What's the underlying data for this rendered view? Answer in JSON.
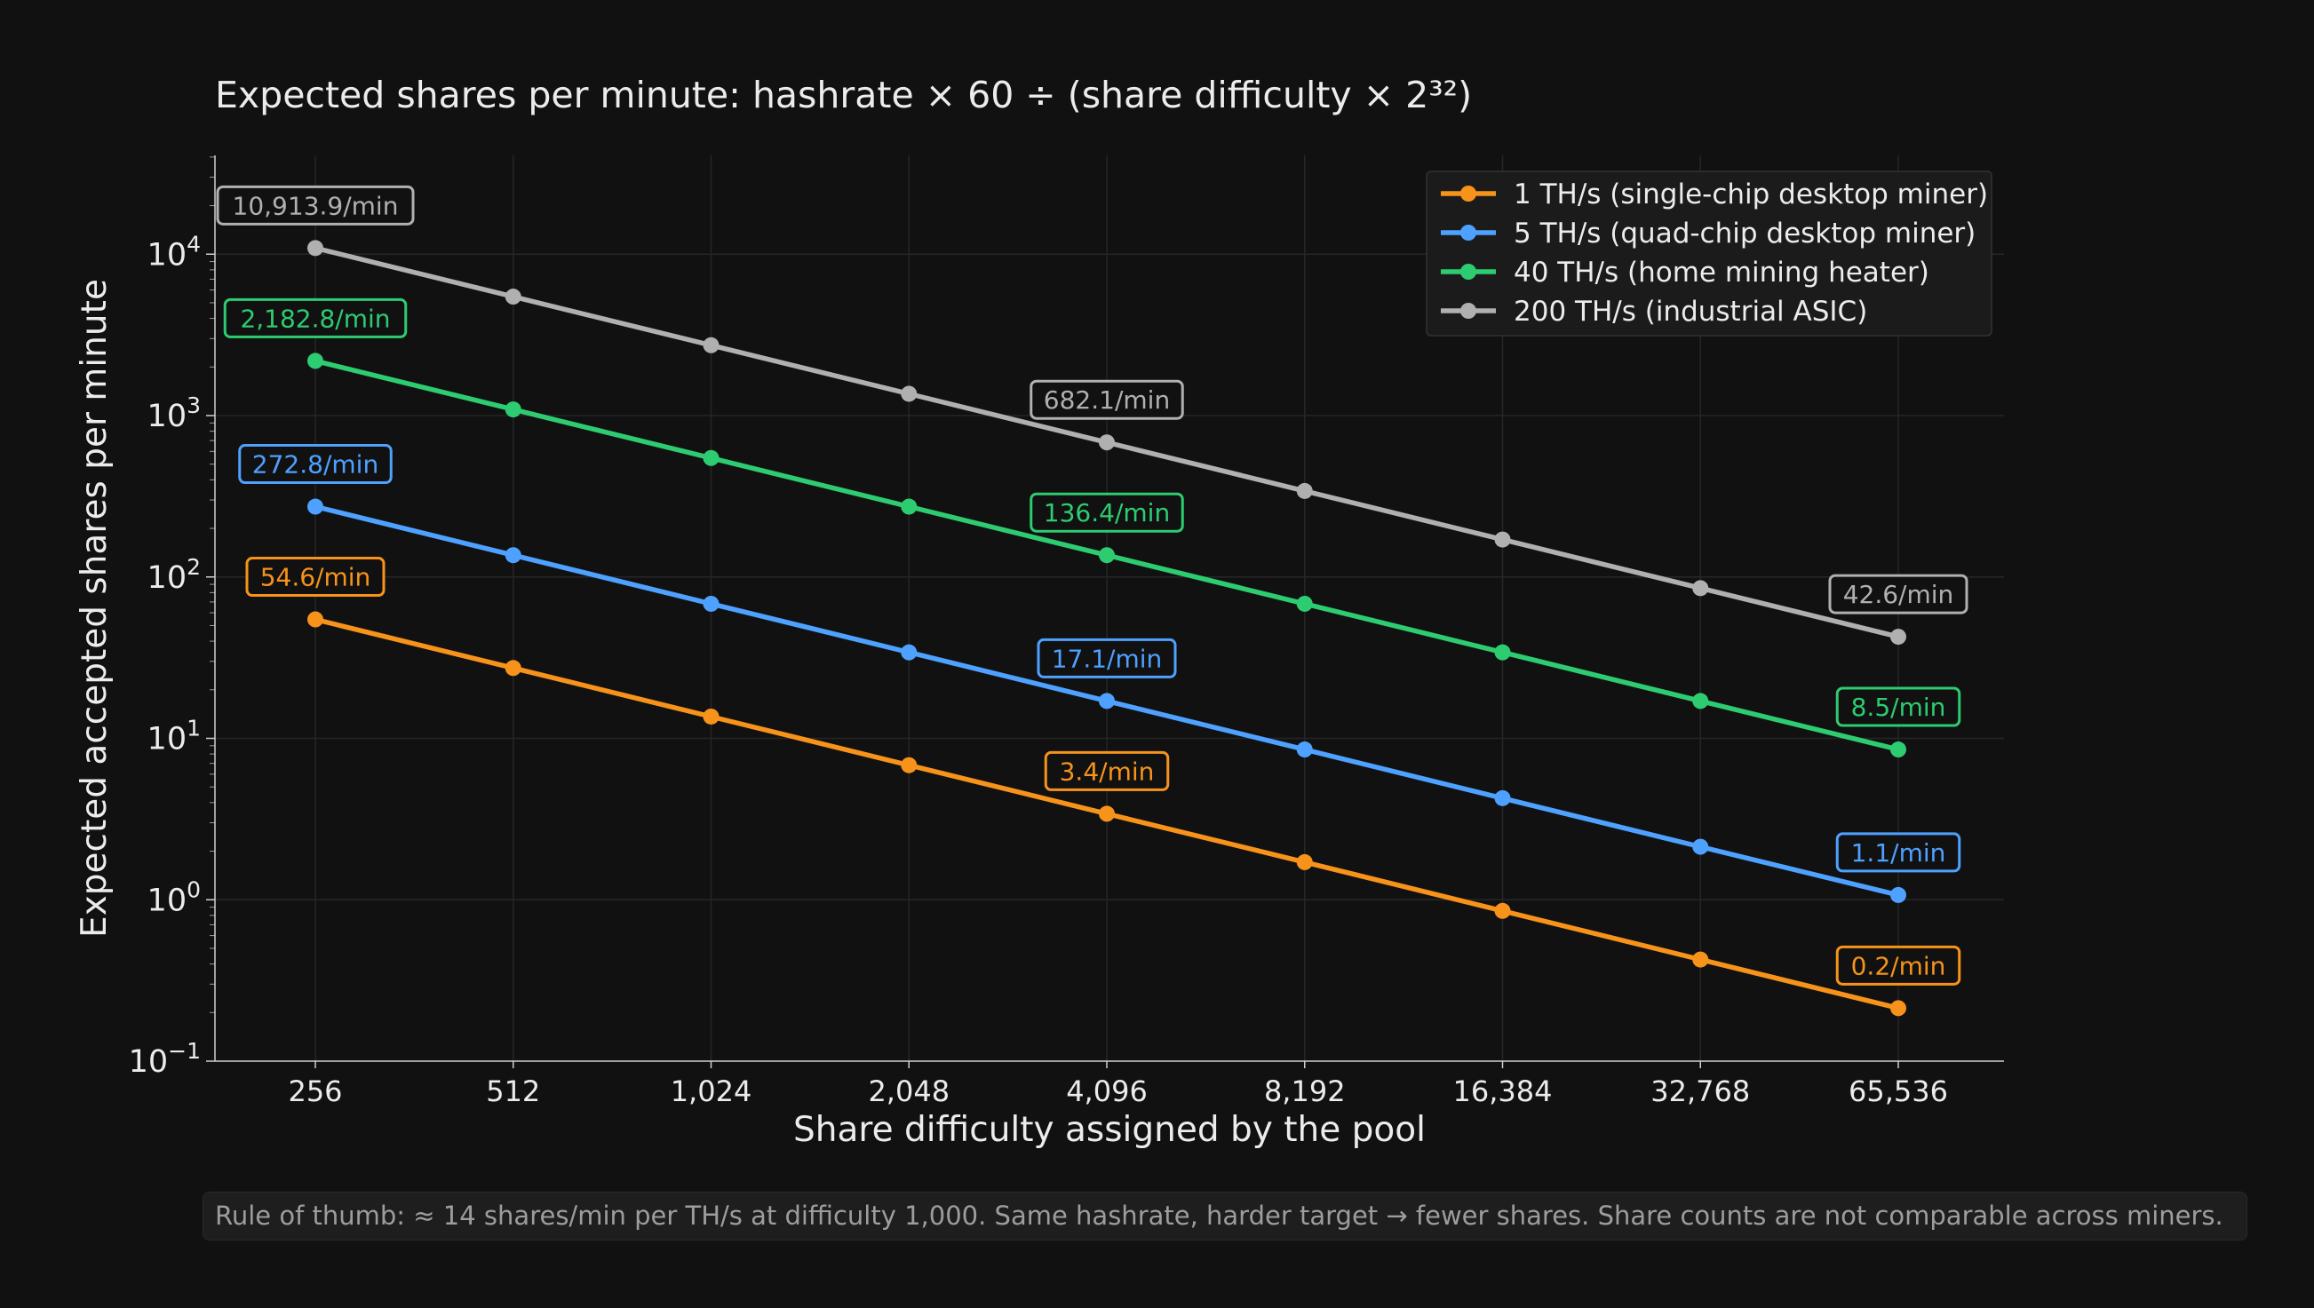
{
  "chart_data": {
    "type": "line",
    "title": "Expected shares per minute: hashrate × 60 ÷ (share difficulty × 2³²)",
    "xlabel": "Share difficulty assigned by the pool",
    "ylabel": "Expected accepted shares per minute",
    "x_scale": "log2",
    "y_scale": "log10",
    "x": [
      256,
      512,
      1024,
      2048,
      4096,
      8192,
      16384,
      32768,
      65536
    ],
    "x_tick_labels": [
      "256",
      "512",
      "1,024",
      "2,048",
      "4,096",
      "8,192",
      "16,384",
      "32,768",
      "65,536"
    ],
    "ylim": [
      0.1,
      40000
    ],
    "y_ticks": [
      {
        "value": 0.1,
        "base": "10",
        "exp": "−1"
      },
      {
        "value": 1,
        "base": "10",
        "exp": "0"
      },
      {
        "value": 10,
        "base": "10",
        "exp": "1"
      },
      {
        "value": 100,
        "base": "10",
        "exp": "2"
      },
      {
        "value": 1000,
        "base": "10",
        "exp": "3"
      },
      {
        "value": 10000,
        "base": "10",
        "exp": "4"
      }
    ],
    "grid": true,
    "legend_position": "top-right",
    "series": [
      {
        "name": "1 TH/s (single-chip desktop miner)",
        "color": "#f7931a",
        "values": [
          54.57,
          27.28,
          13.64,
          6.82,
          3.41,
          1.71,
          0.853,
          0.426,
          0.213
        ],
        "annotations": [
          {
            "index": 0,
            "label": "54.6/min"
          },
          {
            "index": 4,
            "label": "3.4/min"
          },
          {
            "index": 8,
            "label": "0.2/min"
          }
        ]
      },
      {
        "name": "5 TH/s (quad-chip desktop miner)",
        "color": "#4ea1ff",
        "values": [
          272.85,
          136.42,
          68.21,
          34.11,
          17.05,
          8.53,
          4.26,
          2.13,
          1.07
        ],
        "annotations": [
          {
            "index": 0,
            "label": "272.8/min"
          },
          {
            "index": 4,
            "label": "17.1/min"
          },
          {
            "index": 8,
            "label": "1.1/min"
          }
        ]
      },
      {
        "name": "40 TH/s (home mining heater)",
        "color": "#2ecc71",
        "values": [
          2182.8,
          1091.4,
          545.7,
          272.85,
          136.42,
          68.21,
          34.11,
          17.05,
          8.53
        ],
        "annotations": [
          {
            "index": 0,
            "label": "2,182.8/min"
          },
          {
            "index": 4,
            "label": "136.4/min"
          },
          {
            "index": 8,
            "label": "8.5/min"
          }
        ]
      },
      {
        "name": "200 TH/s (industrial ASIC)",
        "color": "#b0b0b0",
        "values": [
          10913.9,
          5456.9,
          2728.5,
          1364.2,
          682.1,
          341.06,
          170.53,
          85.27,
          42.6
        ],
        "annotations": [
          {
            "index": 0,
            "label": "10,913.9/min"
          },
          {
            "index": 4,
            "label": "682.1/min"
          },
          {
            "index": 8,
            "label": "42.6/min"
          }
        ]
      }
    ]
  },
  "footer": {
    "note": "Rule of thumb: ≈ 14 shares/min per TH/s at difficulty 1,000. Same hashrate, harder target → fewer shares. Share counts are not comparable across miners."
  }
}
